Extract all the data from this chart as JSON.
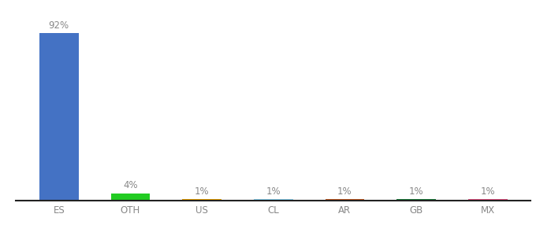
{
  "categories": [
    "ES",
    "OTH",
    "US",
    "CL",
    "AR",
    "GB",
    "MX"
  ],
  "values": [
    92,
    4,
    1,
    1,
    1,
    1,
    1
  ],
  "bar_colors": [
    "#4472c4",
    "#22cc22",
    "#e8a000",
    "#87ceeb",
    "#c05820",
    "#1a7a3a",
    "#e05080"
  ],
  "labels": [
    "92%",
    "4%",
    "1%",
    "1%",
    "1%",
    "1%",
    "1%"
  ],
  "background_color": "#ffffff",
  "label_color": "#888888",
  "ylim": [
    0,
    100
  ],
  "label_fontsize": 8.5,
  "tick_fontsize": 8.5,
  "bar_width": 0.55
}
